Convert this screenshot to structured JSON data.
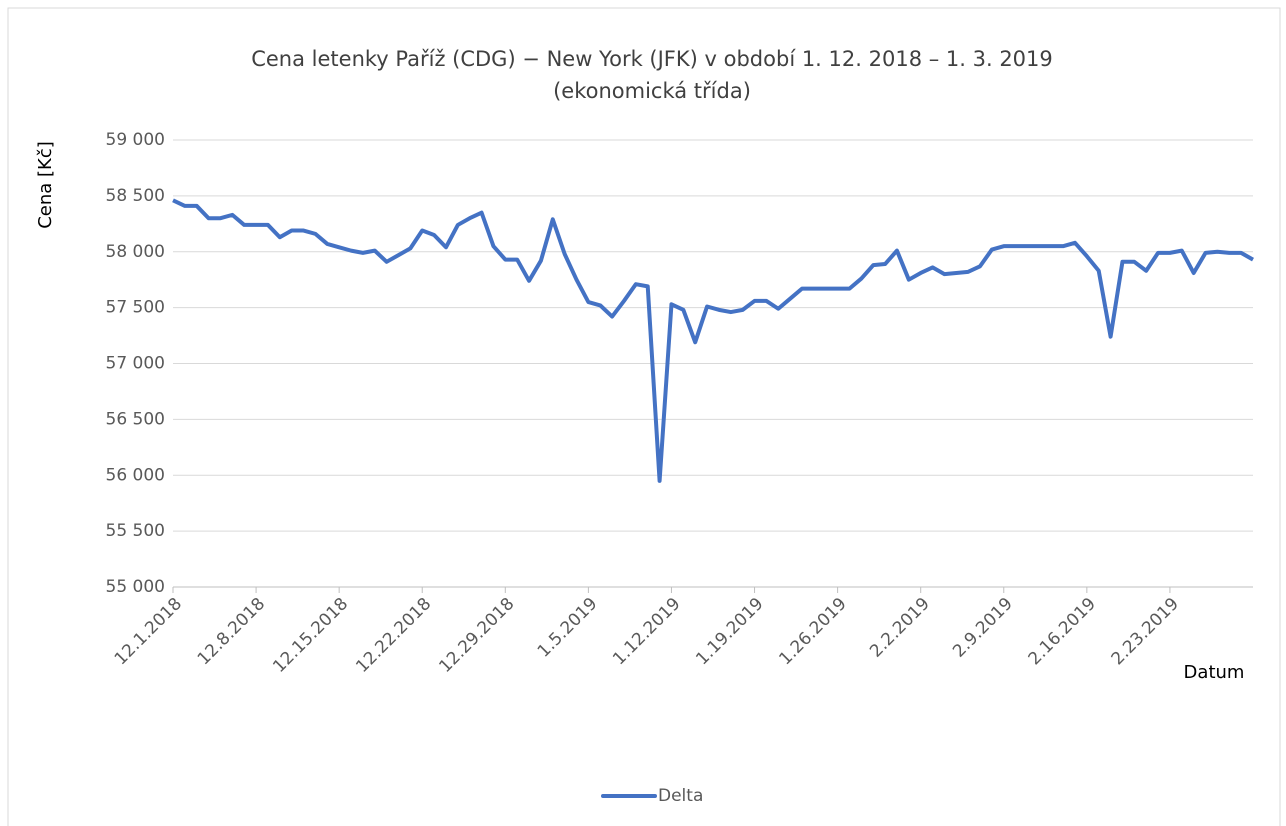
{
  "chart_data": {
    "type": "line",
    "title": [
      "Cena letenky Paříž (CDG) − New York (JFK) v období 1. 12. 2018 – 1. 3. 2019",
      "(ekonomická třída)"
    ],
    "ylabel": "Cena [Kč]",
    "xlabel": "Datum",
    "categories": [
      "12.1.2018",
      null,
      null,
      null,
      null,
      null,
      null,
      "12.8.2018",
      null,
      null,
      null,
      null,
      null,
      null,
      "12.15.2018",
      null,
      null,
      null,
      null,
      null,
      null,
      "12.22.2018",
      null,
      null,
      null,
      null,
      null,
      null,
      "12.29.2018",
      null,
      null,
      null,
      null,
      null,
      null,
      "1.5.2019",
      null,
      null,
      null,
      null,
      null,
      null,
      "1.12.2019",
      null,
      null,
      null,
      null,
      null,
      null,
      "1.19.2019",
      null,
      null,
      null,
      null,
      null,
      null,
      "1.26.2019",
      null,
      null,
      null,
      null,
      null,
      null,
      "2.2.2019",
      null,
      null,
      null,
      null,
      null,
      null,
      "2.9.2019",
      null,
      null,
      null,
      null,
      null,
      null,
      "2.16.2019",
      null,
      null,
      null,
      null,
      null,
      null,
      "2.23.2019",
      null,
      null,
      null,
      null,
      null,
      null,
      null
    ],
    "series": [
      {
        "name": "Delta",
        "color": "#4472c4",
        "values": [
          58460,
          58410,
          58410,
          58300,
          58300,
          58330,
          58240,
          58240,
          58240,
          58130,
          58190,
          58190,
          58160,
          58070,
          58040,
          58010,
          57990,
          58010,
          57910,
          57970,
          58030,
          58190,
          58150,
          58040,
          58240,
          58300,
          58350,
          58050,
          57930,
          57930,
          57740,
          57920,
          58290,
          57980,
          57750,
          57550,
          57520,
          57420,
          57560,
          57710,
          57690,
          55950,
          57530,
          57480,
          57190,
          57510,
          57480,
          57460,
          57480,
          57560,
          57560,
          57490,
          57580,
          57670,
          57670,
          57670,
          57670,
          57670,
          57760,
          57880,
          57890,
          58010,
          57750,
          57810,
          57860,
          57800,
          57810,
          57820,
          57870,
          58020,
          58050,
          58050,
          58050,
          58050,
          58050,
          58050,
          58080,
          57960,
          57830,
          57240,
          57910,
          57910,
          57830,
          57990,
          57990,
          58010,
          57810,
          57990,
          58000,
          57990,
          57990,
          57930
        ]
      }
    ],
    "ylim": [
      55000,
      59000
    ],
    "yticks": [
      {
        "value": 55000,
        "label": "55 000"
      },
      {
        "value": 55500,
        "label": "55 500"
      },
      {
        "value": 56000,
        "label": "56 000"
      },
      {
        "value": 56500,
        "label": "56 500"
      },
      {
        "value": 57000,
        "label": "57 000"
      },
      {
        "value": 57500,
        "label": "57 500"
      },
      {
        "value": 58000,
        "label": "58 000"
      },
      {
        "value": 58500,
        "label": "58 500"
      },
      {
        "value": 59000,
        "label": "59 000"
      }
    ],
    "grid": true,
    "legend": "bottom"
  }
}
